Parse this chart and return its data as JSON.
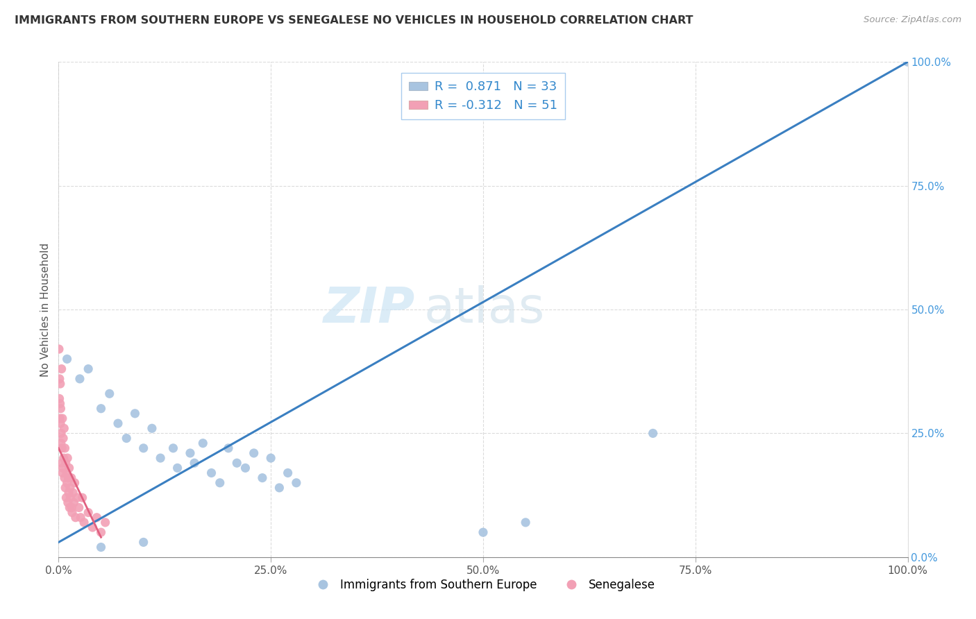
{
  "title": "IMMIGRANTS FROM SOUTHERN EUROPE VS SENEGALESE NO VEHICLES IN HOUSEHOLD CORRELATION CHART",
  "source": "Source: ZipAtlas.com",
  "ylabel": "No Vehicles in Household",
  "xlim": [
    0,
    100
  ],
  "ylim": [
    0,
    100
  ],
  "xtick_labels": [
    "0.0%",
    "25.0%",
    "50.0%",
    "75.0%",
    "100.0%"
  ],
  "xtick_vals": [
    0,
    25,
    50,
    75,
    100
  ],
  "ytick_labels": [
    "0.0%",
    "25.0%",
    "50.0%",
    "75.0%",
    "100.0%"
  ],
  "ytick_vals": [
    0,
    25,
    50,
    75,
    100
  ],
  "blue_label": "Immigrants from Southern Europe",
  "pink_label": "Senegalese",
  "R_blue": 0.871,
  "N_blue": 33,
  "R_pink": -0.312,
  "N_pink": 51,
  "blue_color": "#a8c4e0",
  "pink_color": "#f2a0b5",
  "blue_line_color": "#3a7fc1",
  "pink_line_color": "#e06080",
  "watermark_zip": "ZIP",
  "watermark_atlas": "atlas",
  "background_color": "#ffffff",
  "grid_color": "#cccccc",
  "blue_scatter": [
    [
      1.0,
      40.0
    ],
    [
      2.5,
      36.0
    ],
    [
      3.5,
      38.0
    ],
    [
      5.0,
      30.0
    ],
    [
      6.0,
      33.0
    ],
    [
      7.0,
      27.0
    ],
    [
      8.0,
      24.0
    ],
    [
      9.0,
      29.0
    ],
    [
      10.0,
      22.0
    ],
    [
      11.0,
      26.0
    ],
    [
      12.0,
      20.0
    ],
    [
      13.5,
      22.0
    ],
    [
      14.0,
      18.0
    ],
    [
      15.5,
      21.0
    ],
    [
      16.0,
      19.0
    ],
    [
      17.0,
      23.0
    ],
    [
      18.0,
      17.0
    ],
    [
      19.0,
      15.0
    ],
    [
      20.0,
      22.0
    ],
    [
      21.0,
      19.0
    ],
    [
      22.0,
      18.0
    ],
    [
      23.0,
      21.0
    ],
    [
      24.0,
      16.0
    ],
    [
      25.0,
      20.0
    ],
    [
      26.0,
      14.0
    ],
    [
      27.0,
      17.0
    ],
    [
      28.0,
      15.0
    ],
    [
      5.0,
      2.0
    ],
    [
      10.0,
      3.0
    ],
    [
      50.0,
      5.0
    ],
    [
      55.0,
      7.0
    ],
    [
      70.0,
      25.0
    ],
    [
      100.0,
      100.0
    ]
  ],
  "pink_scatter": [
    [
      0.1,
      32.0
    ],
    [
      0.15,
      28.0
    ],
    [
      0.2,
      35.0
    ],
    [
      0.25,
      30.0
    ],
    [
      0.3,
      25.0
    ],
    [
      0.35,
      38.0
    ],
    [
      0.4,
      22.0
    ],
    [
      0.45,
      28.0
    ],
    [
      0.5,
      18.0
    ],
    [
      0.55,
      24.0
    ],
    [
      0.6,
      20.0
    ],
    [
      0.65,
      26.0
    ],
    [
      0.7,
      16.0
    ],
    [
      0.75,
      22.0
    ],
    [
      0.8,
      14.0
    ],
    [
      0.85,
      19.0
    ],
    [
      0.9,
      12.0
    ],
    [
      0.95,
      17.0
    ],
    [
      1.0,
      15.0
    ],
    [
      1.05,
      20.0
    ],
    [
      1.1,
      11.0
    ],
    [
      1.15,
      16.0
    ],
    [
      1.2,
      13.0
    ],
    [
      1.25,
      18.0
    ],
    [
      1.3,
      10.0
    ],
    [
      1.35,
      14.0
    ],
    [
      1.4,
      12.0
    ],
    [
      1.5,
      16.0
    ],
    [
      1.6,
      9.0
    ],
    [
      1.7,
      13.0
    ],
    [
      1.8,
      11.0
    ],
    [
      1.9,
      15.0
    ],
    [
      2.0,
      8.0
    ],
    [
      2.2,
      12.0
    ],
    [
      2.4,
      10.0
    ],
    [
      2.6,
      8.0
    ],
    [
      2.8,
      12.0
    ],
    [
      3.0,
      7.0
    ],
    [
      3.5,
      9.0
    ],
    [
      4.0,
      6.0
    ],
    [
      4.5,
      8.0
    ],
    [
      5.0,
      5.0
    ],
    [
      5.5,
      7.0
    ],
    [
      0.05,
      42.0
    ],
    [
      0.12,
      36.0
    ],
    [
      0.18,
      31.0
    ],
    [
      0.22,
      27.0
    ],
    [
      0.28,
      23.0
    ],
    [
      0.38,
      19.0
    ],
    [
      0.48,
      17.0
    ],
    [
      1.55,
      10.0
    ]
  ],
  "blue_line": [
    [
      0,
      3
    ],
    [
      100,
      100
    ]
  ],
  "pink_line": [
    [
      0,
      22
    ],
    [
      5,
      4
    ]
  ]
}
